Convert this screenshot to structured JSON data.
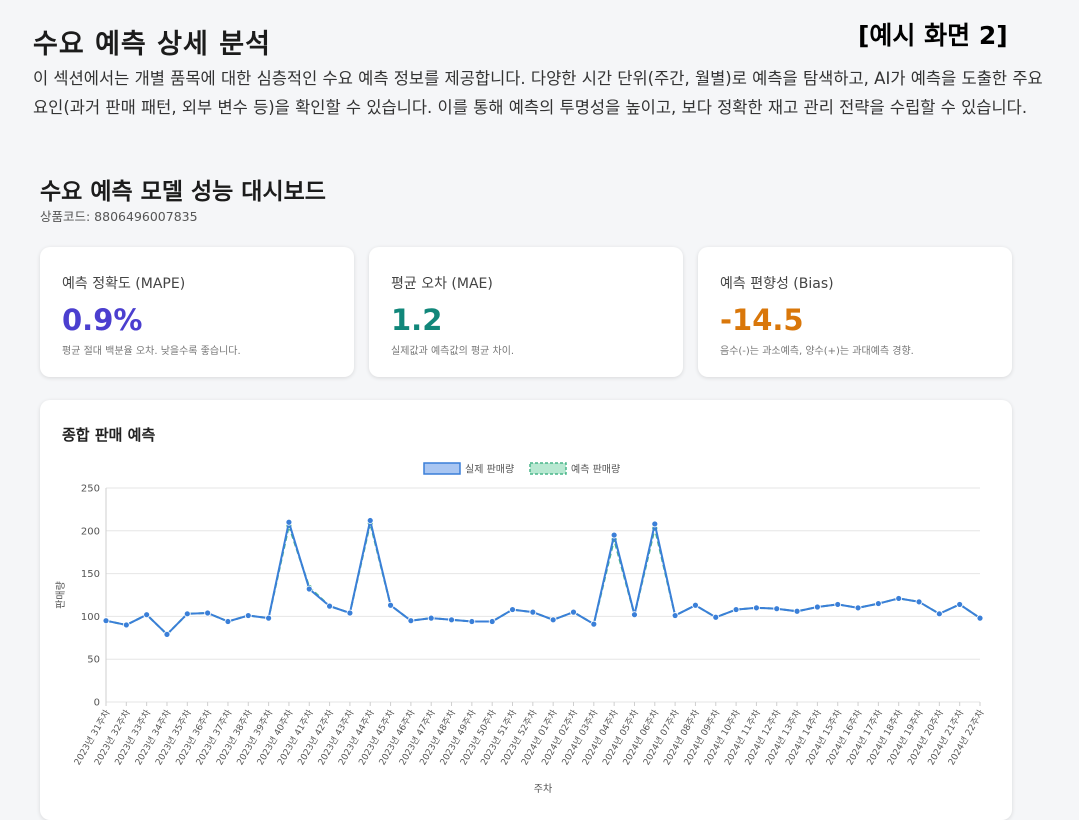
{
  "header": {
    "title": "수요 예측 상세 분석",
    "tag": "[예시 화면 2]",
    "description": "이 섹션에서는 개별 품목에 대한 심층적인 수요 예측 정보를 제공합니다. 다양한 시간 단위(주간, 월별)로 예측을 탐색하고, AI가 예측을 도출한 주요 요인(과거 판매 패턴, 외부 변수 등)을 확인할 수 있습니다. 이를 통해 예측의 투명성을 높이고, 보다 정확한 재고 관리 전략을 수립할 수 있습니다."
  },
  "dashboard": {
    "title": "수요 예측 모델 성능 대시보드",
    "product_code": "상품코드: 8806496007835"
  },
  "cards": [
    {
      "label": "예측 정확도 (MAPE)",
      "value": "0.9%",
      "note": "평균 절대 백분율 오차. 낮을수록 좋습니다.",
      "color": "#4b3fcf"
    },
    {
      "label": "평균 오차 (MAE)",
      "value": "1.2",
      "note": "실제값과 예측값의 평균 차이.",
      "color": "#11877a"
    },
    {
      "label": "예측 편향성 (Bias)",
      "value": "-14.5",
      "note": "음수(-)는 과소예측, 양수(+)는 과대예측 경향.",
      "color": "#d9770a"
    }
  ],
  "chart_card": {
    "title": "종합 판매 예측"
  },
  "chart_data": {
    "type": "line",
    "xlabel": "주차",
    "ylabel": "판매량",
    "ylim": [
      0,
      250
    ],
    "yticks": [
      0,
      50,
      100,
      150,
      200,
      250
    ],
    "grid": true,
    "legend_position": "top",
    "categories": [
      "2023년 31주차",
      "2023년 32주차",
      "2023년 33주차",
      "2023년 34주차",
      "2023년 35주차",
      "2023년 36주차",
      "2023년 37주차",
      "2023년 38주차",
      "2023년 39주차",
      "2023년 40주차",
      "2023년 41주차",
      "2023년 42주차",
      "2023년 43주차",
      "2023년 44주차",
      "2023년 45주차",
      "2023년 46주차",
      "2023년 47주차",
      "2023년 48주차",
      "2023년 49주차",
      "2023년 50주차",
      "2023년 51주차",
      "2023년 52주차",
      "2024년 01주차",
      "2024년 02주차",
      "2024년 03주차",
      "2024년 04주차",
      "2024년 05주차",
      "2024년 06주차",
      "2024년 07주차",
      "2024년 08주차",
      "2024년 09주차",
      "2024년 10주차",
      "2024년 11주차",
      "2024년 12주차",
      "2024년 13주차",
      "2024년 14주차",
      "2024년 15주차",
      "2024년 16주차",
      "2024년 17주차",
      "2024년 18주차",
      "2024년 19주차",
      "2024년 20주차",
      "2024년 21주차",
      "2024년 22주차"
    ],
    "series": [
      {
        "name": "실제 판매량",
        "color": "#3a7fd8",
        "fill": "#a9c6f2",
        "dashed": false,
        "values": [
          95,
          90,
          102,
          79,
          103,
          104,
          94,
          101,
          98,
          210,
          132,
          112,
          104,
          212,
          113,
          95,
          98,
          96,
          94,
          94,
          108,
          105,
          96,
          105,
          91,
          195,
          102,
          208,
          101,
          113,
          99,
          108,
          110,
          109,
          106,
          111,
          114,
          110,
          115,
          121,
          117,
          103,
          114,
          98
        ]
      },
      {
        "name": "예측 판매량",
        "color": "#4ab58a",
        "fill": "#b7e8d1",
        "dashed": true,
        "values": [
          95,
          90,
          102,
          79,
          103,
          104,
          94,
          101,
          98,
          206,
          134,
          112,
          104,
          209,
          113,
          95,
          98,
          96,
          94,
          94,
          108,
          105,
          96,
          105,
          91,
          190,
          102,
          203,
          101,
          113,
          99,
          108,
          110,
          109,
          106,
          111,
          114,
          110,
          115,
          121,
          117,
          103,
          114,
          98
        ]
      }
    ]
  }
}
